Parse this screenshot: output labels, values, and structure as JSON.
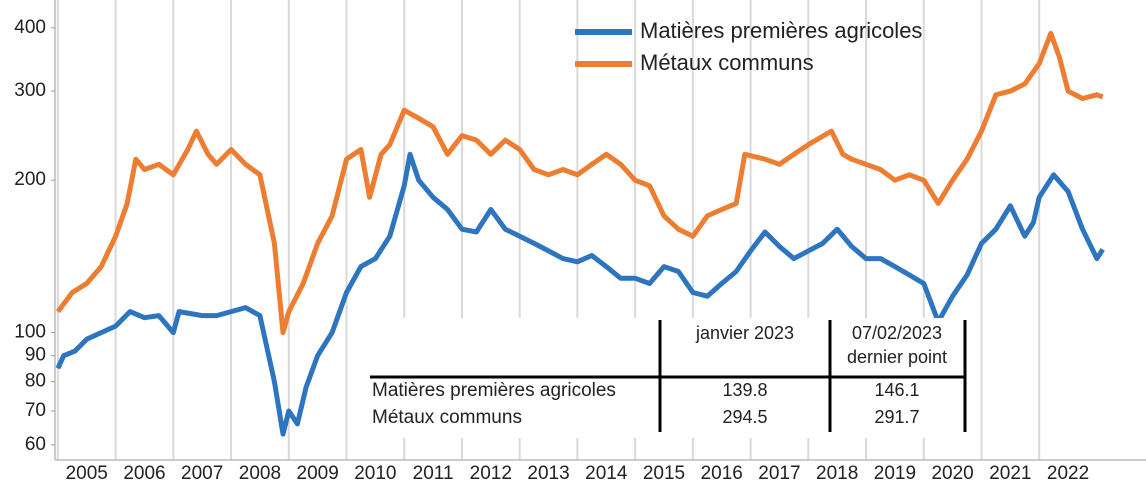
{
  "chart_data": {
    "type": "line",
    "log_y": true,
    "grid_x": true,
    "legend_position": "top-right",
    "xlim": [
      2004.95,
      2023.85
    ],
    "xticks": [
      2005,
      2006,
      2007,
      2008,
      2009,
      2010,
      2011,
      2012,
      2013,
      2014,
      2015,
      2016,
      2017,
      2018,
      2019,
      2020,
      2021,
      2022
    ],
    "ylim": [
      56,
      454
    ],
    "yticks": [
      60,
      70,
      80,
      90,
      100,
      200,
      300,
      400
    ],
    "series": [
      {
        "name": "Matières premières agricoles",
        "color": "#2e75c0",
        "x": [
          2005.0,
          2005.1,
          2005.3,
          2005.5,
          2005.75,
          2006.0,
          2006.25,
          2006.5,
          2006.75,
          2007.0,
          2007.1,
          2007.5,
          2007.75,
          2008.0,
          2008.25,
          2008.5,
          2008.75,
          2008.9,
          2009.0,
          2009.15,
          2009.3,
          2009.5,
          2009.75,
          2010.0,
          2010.25,
          2010.5,
          2010.75,
          2011.0,
          2011.1,
          2011.25,
          2011.5,
          2011.75,
          2012.0,
          2012.25,
          2012.5,
          2012.75,
          2013.0,
          2013.25,
          2013.5,
          2013.75,
          2014.0,
          2014.25,
          2014.5,
          2014.75,
          2015.0,
          2015.25,
          2015.5,
          2015.75,
          2016.0,
          2016.25,
          2016.5,
          2016.75,
          2017.0,
          2017.25,
          2017.5,
          2017.75,
          2018.0,
          2018.25,
          2018.5,
          2018.75,
          2019.0,
          2019.25,
          2019.5,
          2019.75,
          2020.0,
          2020.25,
          2020.5,
          2020.75,
          2021.0,
          2021.25,
          2021.5,
          2021.75,
          2021.9,
          2022.0,
          2022.25,
          2022.5,
          2022.75,
          2023.0,
          2023.1
        ],
        "values": [
          85,
          90,
          92,
          97,
          100,
          103,
          110,
          107,
          108,
          100,
          110,
          108,
          108,
          110,
          112,
          108,
          80,
          63,
          70,
          66,
          78,
          90,
          100,
          120,
          135,
          140,
          155,
          195,
          225,
          200,
          185,
          175,
          160,
          158,
          175,
          160,
          155,
          150,
          145,
          140,
          138,
          142,
          135,
          128,
          128,
          125,
          135,
          132,
          120,
          118,
          125,
          132,
          145,
          158,
          148,
          140,
          145,
          150,
          160,
          148,
          140,
          140,
          135,
          130,
          125,
          105,
          118,
          130,
          150,
          160,
          178,
          155,
          165,
          185,
          205,
          190,
          160,
          140,
          146
        ]
      },
      {
        "name": "Métaux communs",
        "color": "#ed7d31",
        "x": [
          2005.0,
          2005.25,
          2005.5,
          2005.75,
          2006.0,
          2006.2,
          2006.35,
          2006.5,
          2006.75,
          2007.0,
          2007.25,
          2007.4,
          2007.6,
          2007.75,
          2008.0,
          2008.25,
          2008.5,
          2008.75,
          2008.9,
          2009.0,
          2009.25,
          2009.5,
          2009.75,
          2010.0,
          2010.25,
          2010.4,
          2010.6,
          2010.75,
          2011.0,
          2011.25,
          2011.5,
          2011.75,
          2012.0,
          2012.25,
          2012.5,
          2012.75,
          2013.0,
          2013.25,
          2013.5,
          2013.75,
          2014.0,
          2014.25,
          2014.5,
          2014.75,
          2015.0,
          2015.25,
          2015.5,
          2015.75,
          2016.0,
          2016.25,
          2016.5,
          2016.75,
          2016.9,
          2017.25,
          2017.5,
          2017.75,
          2018.0,
          2018.4,
          2018.6,
          2018.75,
          2019.0,
          2019.25,
          2019.5,
          2019.75,
          2020.0,
          2020.25,
          2020.5,
          2020.75,
          2021.0,
          2021.25,
          2021.5,
          2021.75,
          2022.0,
          2022.2,
          2022.35,
          2022.5,
          2022.75,
          2023.0,
          2023.1
        ],
        "values": [
          110,
          120,
          125,
          135,
          155,
          180,
          220,
          210,
          215,
          205,
          230,
          250,
          225,
          215,
          230,
          215,
          205,
          150,
          100,
          110,
          125,
          150,
          170,
          220,
          230,
          185,
          225,
          235,
          275,
          265,
          255,
          225,
          245,
          240,
          225,
          240,
          230,
          210,
          205,
          210,
          205,
          215,
          225,
          215,
          200,
          195,
          170,
          160,
          155,
          170,
          175,
          180,
          225,
          220,
          215,
          225,
          235,
          250,
          225,
          220,
          215,
          210,
          200,
          205,
          200,
          180,
          200,
          220,
          250,
          295,
          300,
          310,
          340,
          390,
          350,
          300,
          290,
          295,
          292
        ]
      }
    ],
    "table": {
      "columns": [
        "janvier 2023",
        [
          "07/02/2023",
          "dernier point"
        ]
      ],
      "rows": [
        [
          139.8,
          146.1
        ],
        [
          294.5,
          291.7
        ]
      ]
    }
  }
}
